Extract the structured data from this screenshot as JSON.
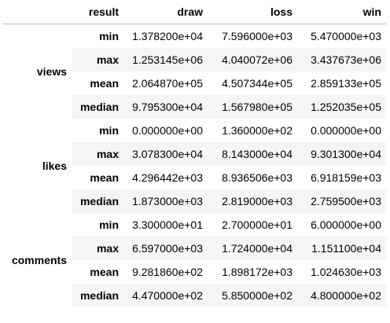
{
  "table": {
    "columns_index_name": "result",
    "columns": [
      "draw",
      "loss",
      "win"
    ],
    "groups": [
      {
        "name": "views",
        "rows": [
          {
            "stat": "min",
            "values": [
              "1.378200e+04",
              "7.596000e+03",
              "5.470000e+03"
            ]
          },
          {
            "stat": "max",
            "values": [
              "1.253145e+06",
              "4.040072e+06",
              "3.437673e+06"
            ]
          },
          {
            "stat": "mean",
            "values": [
              "2.064870e+05",
              "4.507344e+05",
              "2.859133e+05"
            ]
          },
          {
            "stat": "median",
            "values": [
              "9.795300e+04",
              "1.567980e+05",
              "1.252035e+05"
            ]
          }
        ]
      },
      {
        "name": "likes",
        "rows": [
          {
            "stat": "min",
            "values": [
              "0.000000e+00",
              "1.360000e+02",
              "0.000000e+00"
            ]
          },
          {
            "stat": "max",
            "values": [
              "3.078300e+04",
              "8.143000e+04",
              "9.301300e+04"
            ]
          },
          {
            "stat": "mean",
            "values": [
              "4.296442e+03",
              "8.936506e+03",
              "6.918159e+03"
            ]
          },
          {
            "stat": "median",
            "values": [
              "1.873000e+03",
              "2.819000e+03",
              "2.759500e+03"
            ]
          }
        ]
      },
      {
        "name": "comments",
        "rows": [
          {
            "stat": "min",
            "values": [
              "3.300000e+01",
              "2.700000e+01",
              "6.000000e+00"
            ]
          },
          {
            "stat": "max",
            "values": [
              "6.597000e+03",
              "1.724000e+04",
              "1.151100e+04"
            ]
          },
          {
            "stat": "mean",
            "values": [
              "9.281860e+02",
              "1.898172e+03",
              "1.024630e+03"
            ]
          },
          {
            "stat": "median",
            "values": [
              "4.470000e+02",
              "5.850000e+02",
              "4.800000e+02"
            ]
          }
        ]
      }
    ]
  }
}
